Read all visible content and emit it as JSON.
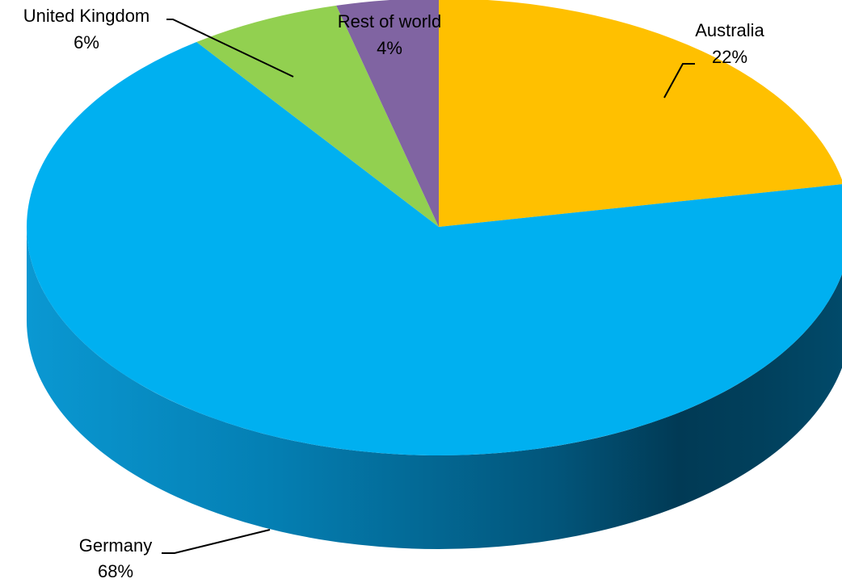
{
  "chart_data": {
    "type": "pie",
    "style": "3d",
    "title": "",
    "legend": "none",
    "start_angle": "12 o'clock",
    "direction": "clockwise",
    "slices": [
      {
        "label": "Australia",
        "value": 22,
        "pct_label": "22%",
        "color": "#FFC000"
      },
      {
        "label": "Germany",
        "value": 68,
        "pct_label": "68%",
        "color": "#00B0F0"
      },
      {
        "label": "United Kingdom",
        "value": 6,
        "pct_label": "6%",
        "color": "#92D050"
      },
      {
        "label": "Rest of world",
        "value": 4,
        "pct_label": "4%",
        "color": "#8064A2"
      }
    ]
  }
}
